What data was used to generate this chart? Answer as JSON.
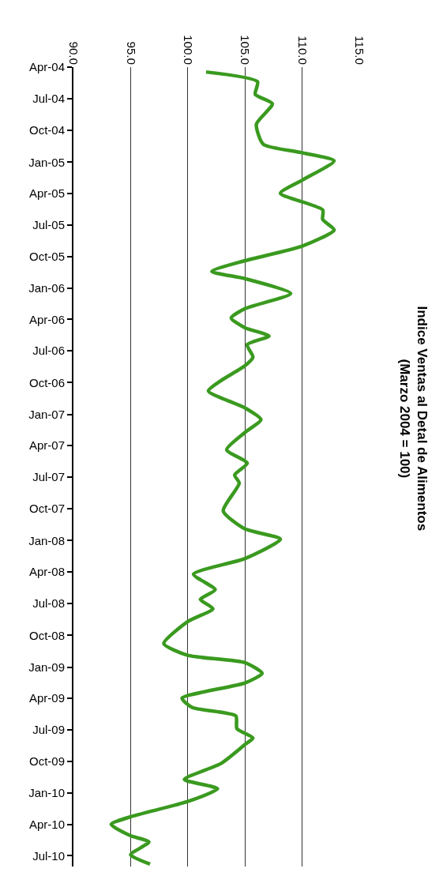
{
  "chart_data": {
    "type": "line",
    "orientation": "horizontal",
    "title": "Indice Ventas al Detal de Alimentos",
    "subtitle": "(Marzo 2004 = 100)",
    "x": [
      "2004-04-15",
      "2004-05-13",
      "2004-06-19",
      "2004-07-16",
      "2004-09-13",
      "2004-11-10",
      "2004-12-04",
      "2004-12-28",
      "2005-02-22",
      "2005-04-01",
      "2005-05-19",
      "2005-06-16",
      "2005-07-16",
      "2005-09-01",
      "2005-10-13",
      "2005-11-13",
      "2005-12-04",
      "2006-01-16",
      "2006-03-01",
      "2006-03-28",
      "2006-04-25",
      "2006-05-19",
      "2006-06-13",
      "2006-07-19",
      "2006-08-13",
      "2006-09-25",
      "2006-10-25",
      "2006-12-13",
      "2007-01-16",
      "2007-02-22",
      "2007-04-13",
      "2007-05-22",
      "2007-06-25",
      "2007-07-19",
      "2007-10-07",
      "2007-11-28",
      "2007-12-28",
      "2008-02-22",
      "2008-04-07",
      "2008-05-22",
      "2008-06-19",
      "2008-07-16",
      "2008-08-22",
      "2008-10-25",
      "2008-11-28",
      "2008-12-19",
      "2009-01-19",
      "2009-02-16",
      "2009-04-01",
      "2009-04-28",
      "2009-05-22",
      "2009-06-28",
      "2009-07-25",
      "2009-08-13",
      "2009-10-07",
      "2009-11-22",
      "2009-12-19",
      "2010-01-25",
      "2010-03-10",
      "2010-04-01",
      "2010-05-04",
      "2010-05-22",
      "2010-06-28",
      "2010-07-25"
    ],
    "series": [
      {
        "color": "#3a9a1f",
        "values": [
          101.6,
          106.1,
          105.9,
          107.4,
          106.0,
          106.6,
          109.9,
          112.8,
          110.0,
          108.1,
          111.8,
          111.8,
          112.8,
          110.0,
          105.0,
          102.1,
          105.0,
          109.0,
          105.0,
          103.8,
          105.0,
          107.1,
          105.2,
          105.7,
          105.0,
          102.9,
          101.8,
          105.0,
          106.4,
          105.0,
          103.4,
          105.2,
          104.1,
          104.5,
          103.1,
          105.0,
          108.1,
          105.0,
          100.5,
          102.4,
          101.1,
          102.2,
          100.0,
          97.9,
          100.0,
          105.0,
          106.5,
          105.0,
          99.5,
          100.4,
          104.2,
          104.3,
          105.7,
          105.0,
          102.9,
          99.7,
          102.6,
          100.0,
          95.0,
          93.3,
          95.0,
          96.6,
          95.0,
          96.7
        ]
      }
    ],
    "ylim": [
      "2010-08-01",
      "2004-04-01"
    ],
    "yticks": [
      {
        "value": "2004-04-01",
        "label": "Apr-04"
      },
      {
        "value": "2004-07-01",
        "label": "Jul-04"
      },
      {
        "value": "2004-10-01",
        "label": "Oct-04"
      },
      {
        "value": "2005-01-01",
        "label": "Jan-05"
      },
      {
        "value": "2005-04-01",
        "label": "Apr-05"
      },
      {
        "value": "2005-07-01",
        "label": "Jul-05"
      },
      {
        "value": "2005-10-01",
        "label": "Oct-05"
      },
      {
        "value": "2006-01-01",
        "label": "Jan-06"
      },
      {
        "value": "2006-04-01",
        "label": "Apr-06"
      },
      {
        "value": "2006-07-01",
        "label": "Jul-06"
      },
      {
        "value": "2006-10-01",
        "label": "Oct-06"
      },
      {
        "value": "2007-01-01",
        "label": "Jan-07"
      },
      {
        "value": "2007-04-01",
        "label": "Apr-07"
      },
      {
        "value": "2007-07-01",
        "label": "Jul-07"
      },
      {
        "value": "2007-10-01",
        "label": "Oct-07"
      },
      {
        "value": "2008-01-01",
        "label": "Jan-08"
      },
      {
        "value": "2008-04-01",
        "label": "Apr-08"
      },
      {
        "value": "2008-07-01",
        "label": "Jul-08"
      },
      {
        "value": "2008-10-01",
        "label": "Oct-08"
      },
      {
        "value": "2009-01-01",
        "label": "Jan-09"
      },
      {
        "value": "2009-04-01",
        "label": "Apr-09"
      },
      {
        "value": "2009-07-01",
        "label": "Jul-09"
      },
      {
        "value": "2009-10-01",
        "label": "Oct-09"
      },
      {
        "value": "2010-01-01",
        "label": "Jan-10"
      },
      {
        "value": "2010-04-01",
        "label": "Apr-10"
      },
      {
        "value": "2010-07-01",
        "label": "Jul-10"
      }
    ],
    "xlim": [
      90,
      115
    ],
    "xticks": [
      {
        "value": 90,
        "label": "90.0"
      },
      {
        "value": 95,
        "label": "95.0"
      },
      {
        "value": 100,
        "label": "100.0"
      },
      {
        "value": 105,
        "label": "105.0"
      },
      {
        "value": 110,
        "label": "110.0"
      },
      {
        "value": 115,
        "label": "115.0"
      }
    ],
    "grid": "x"
  }
}
